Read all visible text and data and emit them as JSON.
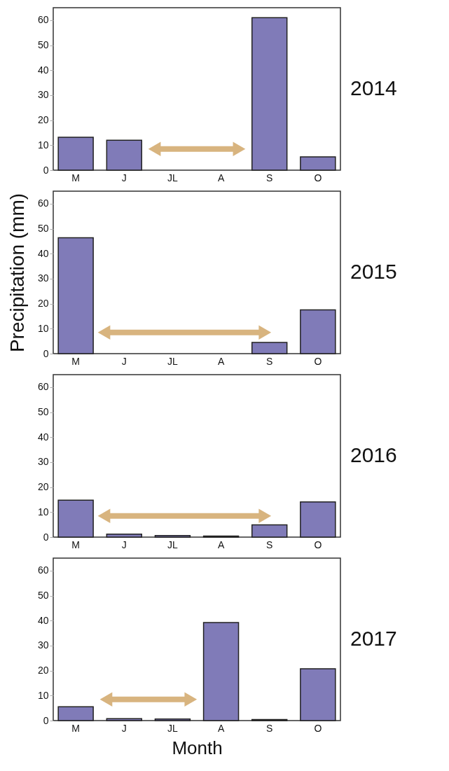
{
  "chart_data": [
    {
      "type": "bar",
      "title": "2014",
      "categories": [
        "M",
        "J",
        "JL",
        "A",
        "S",
        "O"
      ],
      "values": [
        13.2,
        12,
        null,
        null,
        61,
        5.3
      ],
      "color": "#807bb8",
      "ylim": [
        0,
        65
      ],
      "yticks": [
        0,
        10,
        20,
        30,
        40,
        50,
        60
      ],
      "grid": false
    },
    {
      "type": "bar",
      "title": "2015",
      "ylabel": "Precipitation (mm)",
      "categories": [
        "M",
        "J",
        "JL",
        "A",
        "S",
        "O"
      ],
      "values": [
        46.4,
        null,
        null,
        null,
        4.5,
        17.5
      ],
      "color": "#807bb8",
      "ylim": [
        0,
        65
      ],
      "yticks": [
        0,
        10,
        20,
        30,
        40,
        50,
        60
      ],
      "grid": false
    },
    {
      "type": "bar",
      "title": "2016",
      "categories": [
        "M",
        "J",
        "JL",
        "A",
        "S",
        "O"
      ],
      "values": [
        14.8,
        1.2,
        0.6,
        0.4,
        4.9,
        14.1
      ],
      "color": "#807bb8",
      "ylim": [
        0,
        65
      ],
      "yticks": [
        0,
        10,
        20,
        30,
        40,
        50,
        60
      ],
      "grid": false
    },
    {
      "type": "bar",
      "title": "2017",
      "xlabel": "Month",
      "categories": [
        "M",
        "J",
        "JL",
        "A",
        "S",
        "O"
      ],
      "values": [
        5.5,
        0.8,
        0.6,
        39.2,
        0.4,
        20.7
      ],
      "color": "#807bb8",
      "ylim": [
        0,
        65
      ],
      "yticks": [
        0,
        10,
        20,
        30,
        40,
        50,
        60
      ],
      "grid": false
    }
  ]
}
